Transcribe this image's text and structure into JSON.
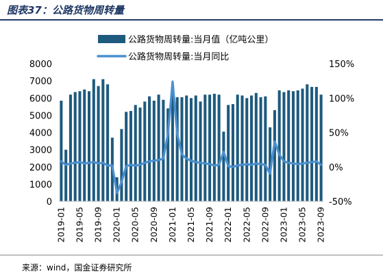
{
  "title": "图表37：公路货物周转量",
  "source": "来源：wind，国金证券研究所",
  "chart_data": {
    "type": "bar",
    "legend_placement": "top",
    "grid": false,
    "colors": {
      "bar": "#1e5a7e",
      "line": "#4a90d0"
    },
    "left_axis": {
      "ylim": [
        0,
        8000
      ],
      "ticks": [
        "0",
        "1000",
        "2000",
        "3000",
        "4000",
        "5000",
        "6000",
        "7000",
        "8000"
      ]
    },
    "right_axis": {
      "ylim": [
        -50,
        150
      ],
      "ticks": [
        "-50%",
        "0%",
        "50%",
        "100%",
        "150%"
      ]
    },
    "x_tick_labels": [
      "2019-01",
      "2019-05",
      "2019-09",
      "2020-01",
      "2020-05",
      "2020-09",
      "2021-01",
      "2021-05",
      "2021-09",
      "2022-01",
      "2022-05",
      "2022-09",
      "2023-01",
      "2023-05",
      "2023-09"
    ],
    "series": [
      {
        "name": "公路货物周转量:当月值（亿吨公里）",
        "type": "bar",
        "axis": "left",
        "values": [
          5850,
          3000,
          6200,
          6350,
          6400,
          6500,
          6400,
          7100,
          6700,
          7100,
          6800,
          3700,
          1400,
          4200,
          5200,
          5250,
          5600,
          5450,
          5800,
          6100,
          5850,
          6200,
          5900,
          5400,
          6200,
          6050,
          6050,
          6150,
          6000,
          6150,
          5800,
          6200,
          6200,
          6250,
          6200,
          4050,
          5600,
          5650,
          6200,
          6150,
          6000,
          6150,
          6300,
          6050,
          6100,
          4300,
          5300,
          6450,
          6350,
          6450,
          6400,
          6450,
          6550,
          6800,
          6650,
          6650,
          6200
        ]
      },
      {
        "name": "公路货物周转量:当月同比",
        "type": "line",
        "axis": "right",
        "values": [
          8,
          3,
          5,
          6,
          7,
          5,
          6,
          7,
          5,
          6,
          2,
          2,
          -38,
          -22,
          1,
          3,
          2,
          3,
          6,
          8,
          9,
          10,
          12,
          48,
          124,
          48,
          18,
          12,
          9,
          7,
          6,
          5,
          4,
          2,
          3,
          22,
          1,
          0,
          2,
          3,
          4,
          3,
          5,
          4,
          3,
          -10,
          37,
          18,
          8,
          6,
          5,
          4,
          5,
          6,
          7,
          8,
          3
        ]
      }
    ]
  }
}
